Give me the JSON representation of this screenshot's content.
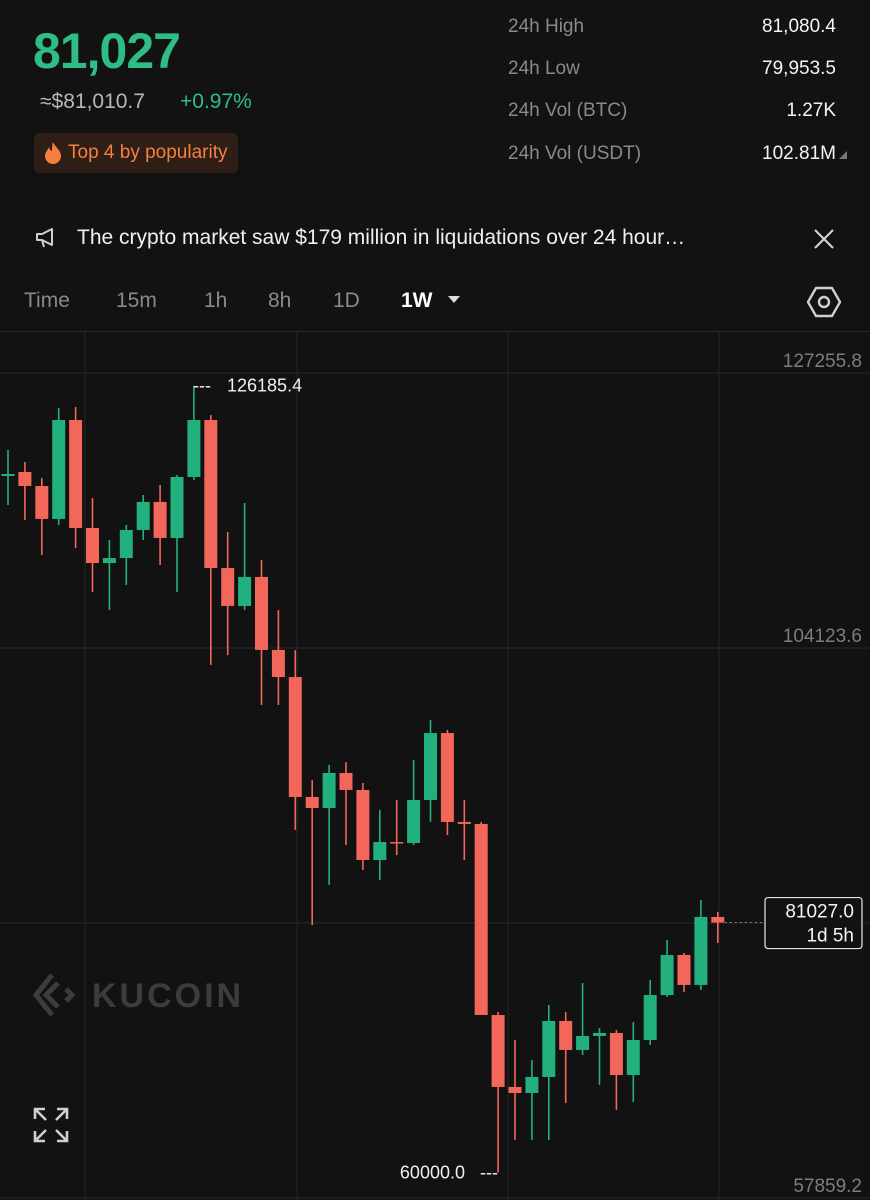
{
  "header": {
    "price": "81,027",
    "fiat_price": "≈$81,010.7",
    "change": "+0.97%",
    "badge": "Top 4 by popularity"
  },
  "stats": [
    {
      "label": "24h High",
      "value": "81,080.4"
    },
    {
      "label": "24h Low",
      "value": "79,953.5"
    },
    {
      "label": "24h Vol (BTC)",
      "value": "1.27K"
    },
    {
      "label": "24h Vol (USDT)",
      "value": "102.81M"
    }
  ],
  "notice": "The crypto market saw $179 million in liquidations over 24 hour…",
  "tabs": [
    "Time",
    "15m",
    "1h",
    "8h",
    "1D",
    "1W"
  ],
  "chart_data": {
    "type": "candlestick",
    "watermark": "KUCOIN",
    "open": [
      118590,
      118930,
      117750,
      114980,
      123300,
      114220,
      111270,
      111690,
      114050,
      116410,
      113380,
      118510,
      123300,
      110850,
      107660,
      110100,
      103960,
      101680,
      91590,
      90660,
      93610,
      92180,
      86290,
      87800,
      87720,
      91340,
      96970,
      89490,
      89320,
      73250,
      67200,
      66690,
      68040,
      72750,
      70310,
      71490,
      71740,
      68200,
      71150,
      74930,
      78300,
      75780,
      81500
    ],
    "high": [
      120780,
      119770,
      118420,
      124310,
      124400,
      116740,
      113210,
      114470,
      116990,
      117840,
      118680,
      126185.4,
      123720,
      113880,
      116320,
      111530,
      107320,
      103960,
      93020,
      94280,
      94530,
      92770,
      90500,
      91340,
      94700,
      98070,
      97230,
      91340,
      89490,
      73500,
      71150,
      69470,
      74090,
      73500,
      75940,
      72160,
      71990,
      72660,
      76200,
      79560,
      78470,
      82930,
      81920
    ],
    "low": [
      116150,
      114890,
      111950,
      114470,
      112540,
      108830,
      107320,
      109420,
      113210,
      111110,
      108830,
      118260,
      102690,
      103530,
      107320,
      99330,
      99330,
      88810,
      80820,
      84190,
      87550,
      85450,
      84610,
      86710,
      87550,
      89490,
      88390,
      86290,
      73250,
      60000,
      62740,
      62740,
      62740,
      65850,
      69890,
      67360,
      65260,
      65930,
      70730,
      74770,
      75190,
      75350,
      79310
    ],
    "close": [
      118760,
      117750,
      114980,
      123300,
      114220,
      111270,
      111690,
      114050,
      116410,
      113380,
      118510,
      123300,
      110850,
      107660,
      110100,
      103960,
      101680,
      91590,
      90660,
      93610,
      92180,
      86290,
      87800,
      87720,
      91340,
      96970,
      89490,
      89320,
      73250,
      67200,
      66690,
      68040,
      72750,
      70310,
      71490,
      71740,
      68200,
      71150,
      74930,
      78300,
      75780,
      81500,
      81027
    ],
    "up_color": "#22b07d",
    "down_color": "#f3665a",
    "ylim": [
      57689,
      130705
    ],
    "yticks": [
      127255.8,
      104123.6,
      {
        "value": 80991.4,
        "label": null
      },
      57859.2
    ],
    "grid": true,
    "high_marker": 126185.4,
    "low_marker": {
      "value": 60000,
      "label": "60000.0"
    },
    "last_price": {
      "value": 81027,
      "label": "81027.0"
    },
    "countdown": "1d 5h"
  }
}
